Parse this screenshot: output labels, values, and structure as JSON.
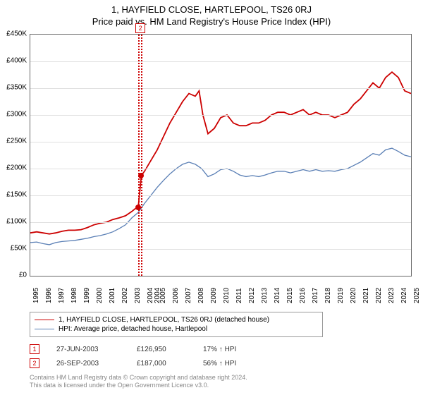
{
  "title_line1": "1, HAYFIELD CLOSE, HARTLEPOOL, TS26 0RJ",
  "title_line2": "Price paid vs. HM Land Registry's House Price Index (HPI)",
  "chart": {
    "type": "line",
    "background_color": "#ffffff",
    "grid_color": "#e0e0e0",
    "axis_color": "#666666",
    "label_fontsize": 10,
    "title_fontsize": 13,
    "x": {
      "min": 1995,
      "max": 2025,
      "ticks": [
        1995,
        1996,
        1997,
        1998,
        1999,
        2000,
        2001,
        2002,
        2003,
        2004,
        2004,
        2005,
        2006,
        2007,
        2008,
        2009,
        2010,
        2011,
        2012,
        2013,
        2014,
        2015,
        2016,
        2017,
        2018,
        2019,
        2020,
        2021,
        2022,
        2023,
        2024,
        2025
      ],
      "tick_labels": [
        "1995",
        "1996",
        "1997",
        "1998",
        "1999",
        "2000",
        "2001",
        "2002",
        "2003",
        "2004",
        "2004",
        "2005",
        "2006",
        "2007",
        "2008",
        "2009",
        "2010",
        "2011",
        "2012",
        "2013",
        "2014",
        "2015",
        "2016",
        "2017",
        "2018",
        "2019",
        "2020",
        "2021",
        "2022",
        "2023",
        "2024",
        "2025"
      ]
    },
    "y": {
      "min": 0,
      "max": 450000,
      "tick_step": 50000,
      "tick_labels": [
        "£0",
        "£50K",
        "£100K",
        "£150K",
        "£200K",
        "£250K",
        "£300K",
        "£350K",
        "£400K",
        "£450K"
      ]
    },
    "series": [
      {
        "name": "subject",
        "color": "#cc0000",
        "line_width": 1.8,
        "points": [
          [
            1995,
            80000
          ],
          [
            1995.5,
            82000
          ],
          [
            1996,
            80000
          ],
          [
            1996.5,
            78000
          ],
          [
            1997,
            80000
          ],
          [
            1997.5,
            83000
          ],
          [
            1998,
            85000
          ],
          [
            1998.5,
            85000
          ],
          [
            1999,
            86000
          ],
          [
            1999.5,
            90000
          ],
          [
            2000,
            95000
          ],
          [
            2000.5,
            98000
          ],
          [
            2001,
            100000
          ],
          [
            2001.5,
            105000
          ],
          [
            2002,
            108000
          ],
          [
            2002.5,
            112000
          ],
          [
            2003,
            120000
          ],
          [
            2003.25,
            125000
          ],
          [
            2003.5,
            127000
          ],
          [
            2003.75,
            187000
          ],
          [
            2004,
            195000
          ],
          [
            2004.5,
            215000
          ],
          [
            2005,
            235000
          ],
          [
            2005.5,
            260000
          ],
          [
            2006,
            285000
          ],
          [
            2006.5,
            305000
          ],
          [
            2007,
            325000
          ],
          [
            2007.5,
            340000
          ],
          [
            2008,
            335000
          ],
          [
            2008.3,
            345000
          ],
          [
            2008.6,
            300000
          ],
          [
            2009,
            265000
          ],
          [
            2009.5,
            275000
          ],
          [
            2010,
            295000
          ],
          [
            2010.5,
            300000
          ],
          [
            2011,
            285000
          ],
          [
            2011.5,
            280000
          ],
          [
            2012,
            280000
          ],
          [
            2012.5,
            285000
          ],
          [
            2013,
            285000
          ],
          [
            2013.5,
            290000
          ],
          [
            2014,
            300000
          ],
          [
            2014.5,
            305000
          ],
          [
            2015,
            305000
          ],
          [
            2015.5,
            300000
          ],
          [
            2016,
            305000
          ],
          [
            2016.5,
            310000
          ],
          [
            2017,
            300000
          ],
          [
            2017.5,
            305000
          ],
          [
            2018,
            300000
          ],
          [
            2018.5,
            300000
          ],
          [
            2019,
            295000
          ],
          [
            2019.5,
            300000
          ],
          [
            2020,
            305000
          ],
          [
            2020.5,
            320000
          ],
          [
            2021,
            330000
          ],
          [
            2021.5,
            345000
          ],
          [
            2022,
            360000
          ],
          [
            2022.5,
            350000
          ],
          [
            2023,
            370000
          ],
          [
            2023.5,
            380000
          ],
          [
            2024,
            370000
          ],
          [
            2024.5,
            345000
          ],
          [
            2025,
            340000
          ]
        ]
      },
      {
        "name": "hpi",
        "color": "#5a7fb5",
        "line_width": 1.3,
        "points": [
          [
            1995,
            62000
          ],
          [
            1995.5,
            63000
          ],
          [
            1996,
            60000
          ],
          [
            1996.5,
            58000
          ],
          [
            1997,
            62000
          ],
          [
            1997.5,
            64000
          ],
          [
            1998,
            65000
          ],
          [
            1998.5,
            66000
          ],
          [
            1999,
            68000
          ],
          [
            1999.5,
            70000
          ],
          [
            2000,
            73000
          ],
          [
            2000.5,
            75000
          ],
          [
            2001,
            78000
          ],
          [
            2001.5,
            82000
          ],
          [
            2002,
            88000
          ],
          [
            2002.5,
            95000
          ],
          [
            2003,
            108000
          ],
          [
            2003.5,
            118000
          ],
          [
            2004,
            135000
          ],
          [
            2004.5,
            150000
          ],
          [
            2005,
            165000
          ],
          [
            2005.5,
            178000
          ],
          [
            2006,
            190000
          ],
          [
            2006.5,
            200000
          ],
          [
            2007,
            208000
          ],
          [
            2007.5,
            212000
          ],
          [
            2008,
            208000
          ],
          [
            2008.5,
            200000
          ],
          [
            2009,
            185000
          ],
          [
            2009.5,
            190000
          ],
          [
            2010,
            198000
          ],
          [
            2010.5,
            200000
          ],
          [
            2011,
            195000
          ],
          [
            2011.5,
            188000
          ],
          [
            2012,
            185000
          ],
          [
            2012.5,
            187000
          ],
          [
            2013,
            185000
          ],
          [
            2013.5,
            188000
          ],
          [
            2014,
            192000
          ],
          [
            2014.5,
            195000
          ],
          [
            2015,
            195000
          ],
          [
            2015.5,
            192000
          ],
          [
            2016,
            195000
          ],
          [
            2016.5,
            198000
          ],
          [
            2017,
            195000
          ],
          [
            2017.5,
            198000
          ],
          [
            2018,
            195000
          ],
          [
            2018.5,
            196000
          ],
          [
            2019,
            195000
          ],
          [
            2019.5,
            198000
          ],
          [
            2020,
            200000
          ],
          [
            2020.5,
            206000
          ],
          [
            2021,
            212000
          ],
          [
            2021.5,
            220000
          ],
          [
            2022,
            228000
          ],
          [
            2022.5,
            225000
          ],
          [
            2023,
            235000
          ],
          [
            2023.5,
            238000
          ],
          [
            2024,
            232000
          ],
          [
            2024.5,
            225000
          ],
          [
            2025,
            222000
          ]
        ]
      }
    ],
    "sale_rules": [
      {
        "n": "1",
        "x": 2003.49
      },
      {
        "n": "2",
        "x": 2003.74
      }
    ],
    "sale_markers": [
      {
        "x": 2003.49,
        "y": 127000
      },
      {
        "x": 2003.74,
        "y": 187000
      }
    ],
    "top_marker": {
      "n": "2",
      "x": 2003.74
    }
  },
  "legend": {
    "items": [
      {
        "color": "#cc0000",
        "width": 1.8,
        "label": "1, HAYFIELD CLOSE, HARTLEPOOL, TS26 0RJ (detached house)"
      },
      {
        "color": "#5a7fb5",
        "width": 1.3,
        "label": "HPI: Average price, detached house, Hartlepool"
      }
    ]
  },
  "sales": [
    {
      "n": "1",
      "date": "27-JUN-2003",
      "price": "£126,950",
      "pct": "17% ↑ HPI"
    },
    {
      "n": "2",
      "date": "26-SEP-2003",
      "price": "£187,000",
      "pct": "56% ↑ HPI"
    }
  ],
  "footer_line1": "Contains HM Land Registry data © Crown copyright and database right 2024.",
  "footer_line2": "This data is licensed under the Open Government Licence v3.0."
}
